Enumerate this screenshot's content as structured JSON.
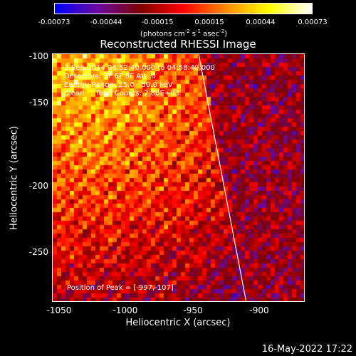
{
  "colorbar": {
    "ticks": [
      "-0.00073",
      "-0.00044",
      "-0.00015",
      "0.00015",
      "0.00044",
      "0.00073"
    ],
    "units_text": "(photons cm",
    "units_sup1": "-2",
    "units_mid1": " s",
    "units_sup2": "-1",
    "units_mid2": " asec",
    "units_sup3": "-2",
    "units_end": ")",
    "colors": [
      "#0000ff",
      "#6a0aa0",
      "#800000",
      "#ff0000",
      "#ff8c00",
      "#ffff00",
      "#ffffff"
    ]
  },
  "title": "Reconstructed RHESSI Image",
  "info": {
    "line1": "3-Sep-2014 04:52:40.000 to 04:58:40.000",
    "line2": "Detectors: 3F 6F 8F Att: 0",
    "line3": "Energy Range: 25.0 - 50.0 keV",
    "line4": "Clean     Total Counts: 2.80E+03",
    "peak": "Position of Peak = [-997,-107]"
  },
  "axes": {
    "xlabel": "Heliocentric X (arcsec)",
    "ylabel": "Heliocentric Y (arcsec)",
    "xticks": [
      "-1050",
      "-1000",
      "-950",
      "-900"
    ],
    "yticks": [
      "-100",
      "-150",
      "-200",
      "-250"
    ],
    "xlim": [
      -1050,
      -870
    ],
    "ylim": [
      -290,
      -100
    ]
  },
  "datestamp": "16-May-2022 17:22"
}
